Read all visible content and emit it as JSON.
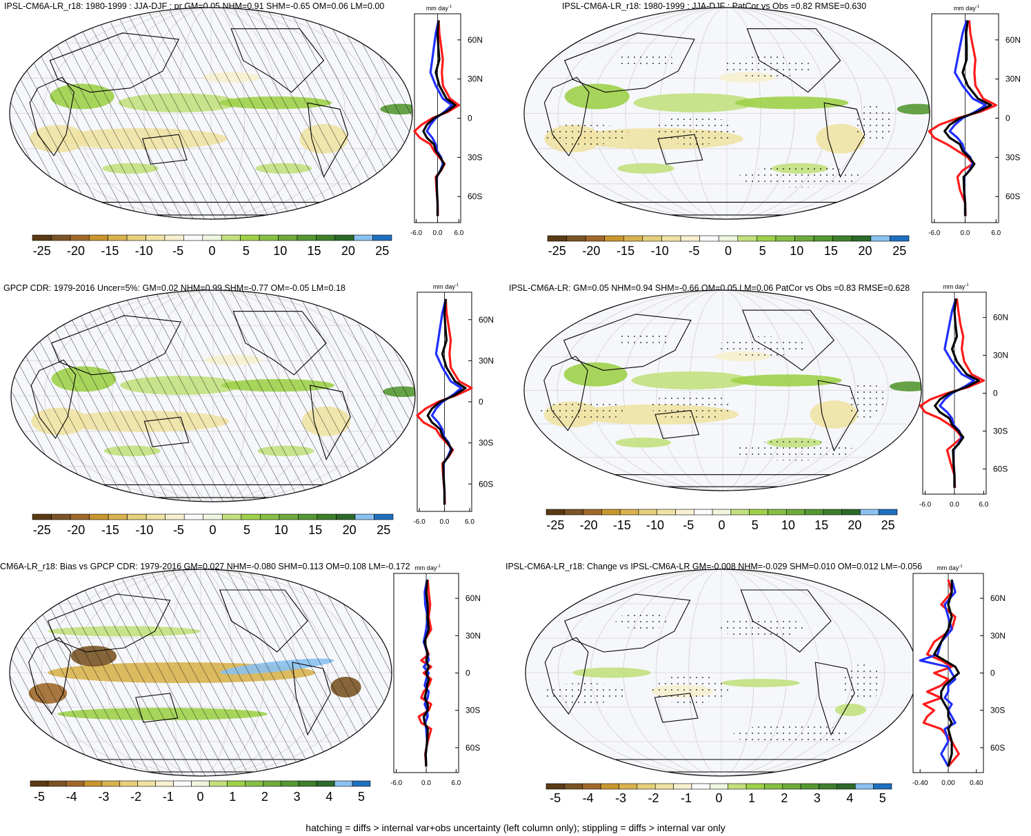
{
  "footnote": "hatching = diffs > internal var+obs uncertainty (left column only); stippling = diffs > internal var only",
  "profile_unit": "mm day",
  "profile_unit_exp": "-1",
  "series_colors": {
    "red": "#ff1a1a",
    "blue": "#1f2fff",
    "black": "#000000"
  },
  "colorbar_colors": [
    "#5a3a14",
    "#7a5426",
    "#a0692b",
    "#c8962f",
    "#d8b24f",
    "#e6cf7c",
    "#f0e2a4",
    "#f7efcf",
    "#fafafa",
    "#eef6e0",
    "#c2e07e",
    "#9fd04a",
    "#86bf45",
    "#6faa3c",
    "#559833",
    "#3f7f2c",
    "#2c6a2a",
    "#8ac1ef",
    "#1f6fbf"
  ],
  "panels": [
    {
      "title": "IPSL-CM6A-LR_r18: 1980-1999 : JJA-DJF : pr GM=0.05 NHM=0.91 SHM=-0.65 OM=0.06 LM=0.00",
      "colorbar_ticks": [
        "-25",
        "-20",
        "-15",
        "-10",
        "-5",
        "0",
        "5",
        "10",
        "15",
        "20",
        "25"
      ],
      "chart_data": {
        "type": "line",
        "lat_ticks": [
          "60N",
          "30N",
          "0",
          "30S",
          "60S"
        ],
        "x_ticks": [
          "-6.0",
          "0.0",
          "6.0"
        ],
        "xlim": [
          -6.5,
          6.5
        ],
        "ylim": [
          -80,
          80
        ],
        "lat": [
          75,
          65,
          55,
          45,
          35,
          25,
          15,
          10,
          5,
          0,
          -5,
          -10,
          -15,
          -20,
          -25,
          -30,
          -35,
          -40,
          -45,
          -55,
          -65,
          -75
        ],
        "series": [
          {
            "color": "red",
            "values": [
              0.3,
              0.5,
              1.0,
              1.5,
              1.2,
              1.5,
              3.5,
              6.0,
              3.0,
              -1.5,
              -4.5,
              -6.5,
              -5.0,
              -2.0,
              -1.0,
              0.5,
              2.0,
              1.0,
              -0.5,
              -0.3,
              0.0,
              0.1
            ]
          },
          {
            "color": "blue",
            "values": [
              0.3,
              -0.5,
              -1.0,
              -1.5,
              -2.0,
              -0.5,
              1.5,
              4.0,
              2.0,
              -0.5,
              -2.0,
              -3.0,
              -1.5,
              -0.5,
              -0.2,
              1.0,
              1.5,
              0.8,
              -0.2,
              -0.2,
              0.0,
              0.0
            ]
          },
          {
            "color": "black",
            "values": [
              0.3,
              0.0,
              0.2,
              0.5,
              -0.5,
              0.5,
              2.5,
              5.0,
              2.5,
              -1.0,
              -3.0,
              -4.0,
              -3.0,
              -1.0,
              -0.5,
              0.8,
              1.8,
              0.9,
              -0.3,
              -0.2,
              0.0,
              0.0
            ]
          }
        ]
      }
    },
    {
      "title": "IPSL-CM6A-LR_r18: 1980-1999 : JJA-DJF : PatCor vs Obs =0.82 RMSE=0.630",
      "colorbar_ticks": [
        "-25",
        "-20",
        "-15",
        "-10",
        "-5",
        "0",
        "5",
        "10",
        "15",
        "20",
        "25"
      ],
      "chart_data": {
        "type": "line",
        "lat_ticks": [
          "60N",
          "30N",
          "0",
          "30S",
          "60S"
        ],
        "x_ticks": [
          "-6.0",
          "0.0",
          "6.0"
        ],
        "xlim": [
          -6.5,
          6.5
        ],
        "ylim": [
          -80,
          80
        ],
        "lat": [
          75,
          65,
          55,
          45,
          35,
          25,
          15,
          10,
          5,
          0,
          -5,
          -10,
          -15,
          -20,
          -25,
          -30,
          -35,
          -40,
          -45,
          -55,
          -65,
          -75
        ],
        "series": [
          {
            "color": "red",
            "values": [
              0.8,
              1.0,
              1.5,
              2.0,
              1.8,
              2.0,
              3.5,
              6.0,
              3.0,
              -1.5,
              -5.0,
              -7.0,
              -6.0,
              -3.5,
              -1.5,
              0.5,
              1.5,
              -0.5,
              -1.5,
              -1.0,
              0.0,
              0.1
            ]
          },
          {
            "color": "blue",
            "values": [
              0.3,
              -0.5,
              -1.0,
              -1.5,
              -2.0,
              -0.5,
              1.5,
              4.0,
              2.0,
              -0.5,
              -2.0,
              -3.0,
              -1.5,
              -0.5,
              -0.2,
              1.0,
              1.5,
              0.8,
              -0.2,
              -0.2,
              0.0,
              0.0
            ]
          },
          {
            "color": "black",
            "values": [
              0.5,
              0.2,
              0.3,
              0.3,
              -0.5,
              0.5,
              2.5,
              5.0,
              2.5,
              -1.0,
              -3.0,
              -4.0,
              -3.0,
              -1.0,
              -0.5,
              0.8,
              1.8,
              0.9,
              -0.3,
              -0.2,
              0.0,
              0.0
            ]
          }
        ]
      }
    },
    {
      "title": "GPCP CDR: 1979-2016 Uncer=5%: GM=0.02 NHM=0.99 SHM=-0.77 OM=-0.05 LM=0.18",
      "colorbar_ticks": [
        "-25",
        "-20",
        "-15",
        "-10",
        "-5",
        "0",
        "5",
        "10",
        "15",
        "20",
        "25"
      ],
      "chart_data": {
        "type": "line",
        "lat_ticks": [
          "60N",
          "30N",
          "0",
          "30S",
          "60S"
        ],
        "x_ticks": [
          "-6.0",
          "0.0",
          "6.0"
        ],
        "xlim": [
          -6.5,
          6.5
        ],
        "ylim": [
          -80,
          80
        ],
        "lat": [
          75,
          65,
          55,
          45,
          35,
          25,
          15,
          10,
          5,
          0,
          -5,
          -10,
          -15,
          -20,
          -25,
          -30,
          -35,
          -40,
          -45,
          -55,
          -65,
          -75
        ],
        "series": [
          {
            "color": "red",
            "values": [
              0.3,
              0.5,
              1.0,
              1.5,
              1.2,
              1.5,
              3.5,
              6.5,
              3.0,
              -1.5,
              -4.5,
              -6.5,
              -5.0,
              -2.0,
              -1.0,
              0.5,
              2.0,
              1.0,
              -0.5,
              -0.3,
              0.0,
              0.1
            ]
          },
          {
            "color": "blue",
            "values": [
              0.3,
              -0.5,
              -1.0,
              -1.5,
              -2.0,
              -0.5,
              1.5,
              4.0,
              2.0,
              -0.5,
              -2.0,
              -3.0,
              -1.5,
              -0.5,
              -0.2,
              1.0,
              1.5,
              0.8,
              -0.2,
              -0.2,
              0.0,
              0.0
            ]
          },
          {
            "color": "black",
            "values": [
              0.3,
              0.0,
              0.2,
              0.5,
              -0.5,
              0.5,
              2.5,
              5.0,
              2.5,
              -1.0,
              -3.0,
              -4.0,
              -3.0,
              -1.0,
              -0.5,
              0.8,
              1.8,
              0.9,
              -0.3,
              -0.2,
              0.0,
              0.0
            ]
          }
        ]
      }
    },
    {
      "title": "IPSL-CM6A-LR: GM=0.05 NHM=0.94 SHM=-0.66 OM=0.05 LM=0.06 PatCor vs Obs =0.83 RMSE=0.628",
      "colorbar_ticks": [
        "-25",
        "-20",
        "-15",
        "-10",
        "-5",
        "0",
        "5",
        "10",
        "15",
        "20",
        "25"
      ],
      "chart_data": {
        "type": "line",
        "lat_ticks": [
          "60N",
          "30N",
          "0",
          "30S",
          "60S"
        ],
        "x_ticks": [
          "-6.0",
          "0.0",
          "6.0"
        ],
        "xlim": [
          -6.5,
          6.5
        ],
        "ylim": [
          -80,
          80
        ],
        "lat": [
          75,
          65,
          55,
          45,
          35,
          25,
          15,
          10,
          5,
          0,
          -5,
          -10,
          -15,
          -20,
          -25,
          -30,
          -35,
          -40,
          -45,
          -55,
          -65,
          -75
        ],
        "series": [
          {
            "color": "red",
            "values": [
              0.5,
              0.8,
              1.2,
              1.8,
              1.5,
              2.0,
              3.5,
              6.0,
              3.0,
              -1.5,
              -5.0,
              -7.0,
              -6.0,
              -3.0,
              -1.0,
              0.5,
              1.5,
              0.0,
              -1.5,
              -0.8,
              0.0,
              0.1
            ]
          },
          {
            "color": "blue",
            "values": [
              0.3,
              -0.5,
              -1.0,
              -1.5,
              -2.0,
              -0.5,
              1.5,
              4.0,
              2.0,
              -0.5,
              -2.0,
              -3.0,
              -1.5,
              -0.5,
              -0.2,
              1.0,
              1.5,
              0.8,
              -0.2,
              -0.2,
              0.0,
              0.0
            ]
          },
          {
            "color": "black",
            "values": [
              0.3,
              0.0,
              0.2,
              0.5,
              -0.5,
              0.5,
              2.5,
              5.0,
              2.5,
              -1.0,
              -3.0,
              -4.0,
              -3.0,
              -1.0,
              -0.5,
              0.8,
              1.8,
              0.9,
              -0.3,
              -0.2,
              0.0,
              0.0
            ]
          }
        ]
      }
    },
    {
      "title": "CM6A-LR_r18: Bias vs GPCP CDR: 1979-2016 GM=0.027 NHM=-0.080 SHM=0.113 OM=0.108 LM=-0.172",
      "colorbar_ticks": [
        "-5",
        "-4",
        "-3",
        "-2",
        "-1",
        "0",
        "1",
        "2",
        "3",
        "4",
        "5"
      ],
      "chart_data": {
        "type": "line",
        "lat_ticks": [
          "60N",
          "30N",
          "0",
          "30S",
          "60S"
        ],
        "x_ticks": [
          "-6.0",
          "0.0",
          "6.0"
        ],
        "xlim": [
          -6.5,
          6.5
        ],
        "ylim": [
          -80,
          80
        ],
        "lat": [
          75,
          65,
          55,
          45,
          35,
          25,
          15,
          10,
          5,
          0,
          -5,
          -10,
          -15,
          -20,
          -25,
          -30,
          -35,
          -40,
          -45,
          -55,
          -65,
          -75
        ],
        "series": [
          {
            "color": "red",
            "values": [
              0.3,
              0.5,
              0.8,
              0.5,
              1.0,
              -0.5,
              0.5,
              -1.0,
              1.0,
              -0.5,
              1.0,
              0.5,
              -0.5,
              -1.0,
              1.0,
              0.5,
              -1.5,
              -1.0,
              1.0,
              0.3,
              -0.2,
              0.0
            ]
          },
          {
            "color": "blue",
            "values": [
              0.2,
              -0.3,
              -0.2,
              0.3,
              0.0,
              -0.5,
              0.3,
              0.5,
              -0.5,
              0.5,
              0.0,
              -0.3,
              0.5,
              0.3,
              -0.3,
              0.2,
              0.3,
              -0.2,
              0.0,
              0.2,
              -0.1,
              0.0
            ]
          },
          {
            "color": "black",
            "values": [
              0.2,
              0.0,
              0.3,
              0.3,
              0.5,
              -0.3,
              0.3,
              0.0,
              0.5,
              0.0,
              0.5,
              0.2,
              0.0,
              -0.3,
              0.3,
              0.3,
              -0.5,
              -0.3,
              0.3,
              0.2,
              -0.1,
              0.0
            ]
          }
        ]
      }
    },
    {
      "title": "IPSL-CM6A-LR_r18: Change vs IPSL-CM6A-LR GM=-0.008 NHM=-0.029 SHM=0.010 OM=0.012 LM=-0.056",
      "colorbar_ticks": [
        "-5",
        "-4",
        "-3",
        "-2",
        "-1",
        "0",
        "1",
        "2",
        "3",
        "4",
        "5"
      ],
      "chart_data": {
        "type": "line",
        "lat_ticks": [
          "60N",
          "30N",
          "0",
          "30S",
          "60S"
        ],
        "x_ticks": [
          "-0.40",
          "0.00",
          "0.40"
        ],
        "xlim": [
          -0.5,
          0.5
        ],
        "ylim": [
          -80,
          80
        ],
        "lat": [
          75,
          65,
          55,
          45,
          35,
          25,
          15,
          10,
          5,
          0,
          -5,
          -10,
          -15,
          -20,
          -25,
          -30,
          -35,
          -40,
          -45,
          -55,
          -65,
          -75
        ],
        "series": [
          {
            "color": "red",
            "values": [
              0.0,
              0.05,
              -0.1,
              0.1,
              0.05,
              -0.2,
              -0.3,
              -0.1,
              0.05,
              -0.2,
              0.0,
              -0.1,
              -0.3,
              -0.1,
              -0.35,
              -0.2,
              -0.3,
              -0.35,
              -0.1,
              0.05,
              0.15,
              0.0
            ]
          },
          {
            "color": "blue",
            "values": [
              0.05,
              0.1,
              -0.05,
              0.0,
              0.05,
              -0.1,
              -0.15,
              -0.4,
              0.0,
              0.05,
              0.1,
              0.0,
              0.0,
              -0.05,
              0.05,
              0.0,
              0.05,
              0.1,
              -0.05,
              0.0,
              -0.1,
              0.0
            ]
          },
          {
            "color": "black",
            "values": [
              0.05,
              0.05,
              0.0,
              0.05,
              0.0,
              -0.1,
              -0.2,
              -0.05,
              0.1,
              0.15,
              0.05,
              -0.05,
              -0.1,
              -0.1,
              -0.05,
              0.0,
              0.0,
              0.05,
              0.0,
              0.05,
              0.05,
              0.0
            ]
          }
        ]
      }
    }
  ]
}
